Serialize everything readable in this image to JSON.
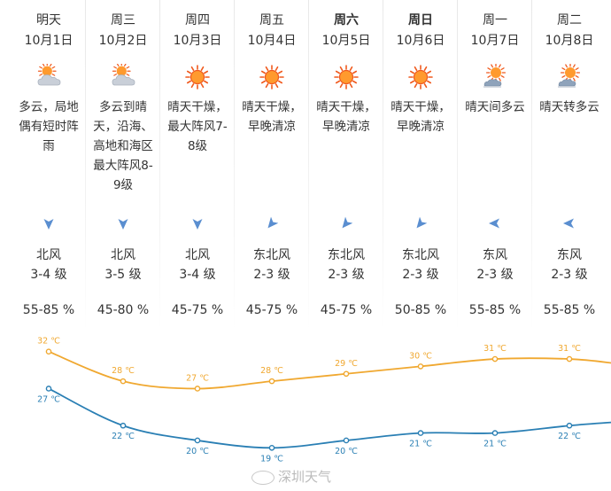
{
  "days": [
    {
      "day": "明天",
      "date": "10月1日",
      "bold": false,
      "weather": "cloudy",
      "desc": "多云，局地偶有短时阵雨",
      "wind_dir": "北风",
      "wind_level": "3-4 级",
      "wind_arrow": "down",
      "humidity": "55-85 %"
    },
    {
      "day": "周三",
      "date": "10月2日",
      "bold": false,
      "weather": "cloudy",
      "desc": "多云到晴天，沿海、高地和海区最大阵风8-9级",
      "wind_dir": "北风",
      "wind_level": "3-5 级",
      "wind_arrow": "down",
      "humidity": "45-80 %"
    },
    {
      "day": "周四",
      "date": "10月3日",
      "bold": false,
      "weather": "sunny",
      "desc": "晴天干燥，最大阵风7-8级",
      "wind_dir": "北风",
      "wind_level": "3-4 级",
      "wind_arrow": "down",
      "humidity": "45-75 %"
    },
    {
      "day": "周五",
      "date": "10月4日",
      "bold": false,
      "weather": "sunny",
      "desc": "晴天干燥，早晚清凉",
      "wind_dir": "东北风",
      "wind_level": "2-3 级",
      "wind_arrow": "downleft",
      "humidity": "45-75 %"
    },
    {
      "day": "周六",
      "date": "10月5日",
      "bold": true,
      "weather": "sunny",
      "desc": "晴天干燥，早晚清凉",
      "wind_dir": "东北风",
      "wind_level": "2-3 级",
      "wind_arrow": "downleft",
      "humidity": "45-75 %"
    },
    {
      "day": "周日",
      "date": "10月6日",
      "bold": true,
      "weather": "sunny",
      "desc": "晴天干燥，早晚清凉",
      "wind_dir": "东北风",
      "wind_level": "2-3 级",
      "wind_arrow": "downleft",
      "humidity": "50-85 %"
    },
    {
      "day": "周一",
      "date": "10月7日",
      "bold": false,
      "weather": "partly",
      "desc": "晴天间多云",
      "wind_dir": "东风",
      "wind_level": "2-3 级",
      "wind_arrow": "left",
      "humidity": "55-85 %"
    },
    {
      "day": "周二",
      "date": "10月8日",
      "bold": false,
      "weather": "partly",
      "desc": "晴天转多云",
      "wind_dir": "东风",
      "wind_level": "2-3 级",
      "wind_arrow": "left",
      "humidity": "55-85 %"
    }
  ],
  "chart_data": {
    "type": "line",
    "categories": [
      "10月1日",
      "10月2日",
      "10月3日",
      "10月4日",
      "10月5日",
      "10月6日",
      "10月7日",
      "10月8日"
    ],
    "series": [
      {
        "values": [
          32,
          28,
          27,
          28,
          29,
          30,
          31,
          31
        ],
        "labels": [
          "32 ℃",
          "28 ℃",
          "27 ℃",
          "28 ℃",
          "29 ℃",
          "30 ℃",
          "31 ℃",
          "31 ℃"
        ],
        "color": "#f0a830"
      },
      {
        "values": [
          27,
          22,
          20,
          19,
          20,
          21,
          21,
          22
        ],
        "labels": [
          "27 ℃",
          "22 ℃",
          "20 ℃",
          "19 ℃",
          "20 ℃",
          "21 ℃",
          "21 ℃",
          "22 ℃"
        ],
        "color": "#2a7fb4"
      }
    ],
    "ylim": [
      17,
      34
    ]
  },
  "watermark": {
    "text": "深圳天气",
    "icon": "weibo-icon"
  },
  "colors": {
    "sun": "#f05a1e",
    "sun_core": "#ff9a2e",
    "cloud": "#c9cfd8",
    "arrow": "#5a8ed0"
  }
}
